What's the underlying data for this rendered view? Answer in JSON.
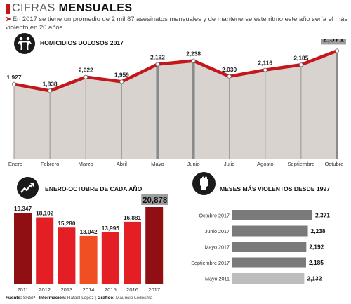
{
  "header": {
    "title_light": "CIFRAS ",
    "title_bold": "MENSUALES",
    "subtitle": "En 2017 se tiene un promedio de 2 mil 87 asesinatos mensuales y de mantenerse este ritmo este año sería el más violento en 20 años."
  },
  "icons": {
    "homicidios": "fighters-icon",
    "anual": "rising-arrow-icon",
    "violentos": "raised-fist-icon"
  },
  "colors": {
    "accent": "#c4161c",
    "line": "#c4161c",
    "area": "#d8d3ce",
    "highlight_bar": "#f04e23",
    "dark_bar": "#8f0f12",
    "gray_bar": "#7a7a7a",
    "light_gray_bar": "#bdbdbd"
  },
  "chart_data": [
    {
      "type": "area",
      "title": "HOMICIDIOS DOLOSOS 2017",
      "categories": [
        "Enero",
        "Febrero",
        "Marzo",
        "Abril",
        "Mayo",
        "Junio",
        "Julio",
        "Agosto",
        "Septiembre",
        "Octubre"
      ],
      "values": [
        1927,
        1838,
        2022,
        1959,
        2192,
        2238,
        2030,
        2116,
        2185,
        2371
      ],
      "value_labels": [
        "1,927",
        "1,838",
        "2,022",
        "1,959",
        "2,192",
        "2,238",
        "2,030",
        "2,116",
        "2,185",
        "2,371"
      ],
      "highlight_index": 9
    },
    {
      "type": "bar",
      "title": "ENERO-OCTUBRE DE CADA AÑO",
      "categories": [
        "2011",
        "2012",
        "2013",
        "2014",
        "2015",
        "2016",
        "2017"
      ],
      "values": [
        19347,
        18102,
        15280,
        13042,
        13995,
        16881,
        20878
      ],
      "value_labels": [
        "19,347",
        "18,102",
        "15,280",
        "13,042",
        "13,995",
        "16,881",
        "20,878"
      ],
      "highlight_index": 6
    },
    {
      "type": "bar",
      "orientation": "horizontal",
      "title": "MESES MÁS VIOLENTOS DESDE 1997",
      "categories": [
        "Octubre 2017",
        "Junio 2017",
        "Mayo 2017",
        "Septiembre 2017",
        "Mayo 2011"
      ],
      "values": [
        2371,
        2238,
        2192,
        2185,
        2132
      ],
      "value_labels": [
        "2,371",
        "2,238",
        "2,192",
        "2,185",
        "2,132"
      ]
    }
  ],
  "footer": {
    "fuente_label": "Fuente:",
    "fuente": "SNSP |",
    "info_label": "Información:",
    "info": "Rafael López |",
    "grafico_label": "Gráfico:",
    "grafico": "Mauricio Ledesma"
  }
}
